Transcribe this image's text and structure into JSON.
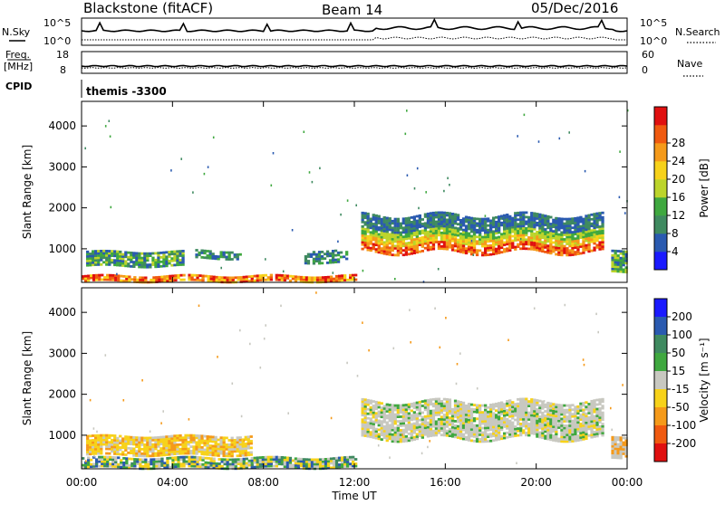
{
  "header": {
    "station": "Blackstone (fitACF)",
    "beam": "Beam 14",
    "date": "05/Dec/2016"
  },
  "summary_panels": {
    "nsky_label": "N.Sky",
    "nsearch_label": "N.Search",
    "freq_label": "Freq.",
    "freq_unit": "[MHz]",
    "nave_label": "Nave",
    "cpid_label": "CPID",
    "cpid_value": "themis -3300",
    "noise_ticks_left": [
      "10^5",
      "10^0"
    ],
    "noise_ticks_right": [
      "10^5",
      "10^0"
    ],
    "freq_ticks_left": [
      "18",
      "8"
    ],
    "freq_ticks_right": [
      "60",
      "0"
    ]
  },
  "chart_data": [
    {
      "type": "heatmap",
      "name": "power",
      "ylabel": "Slant Range [km]",
      "xlabel": "Time UT",
      "xlim": [
        "00:00",
        "24:00"
      ],
      "ylim": [
        180,
        4600
      ],
      "x_ticks": [
        "00:00",
        "04:00",
        "08:00",
        "12:00",
        "16:00",
        "20:00",
        "00:00"
      ],
      "y_ticks": [
        1000,
        2000,
        3000,
        4000
      ],
      "colorbar": {
        "label": "Power [dB]",
        "ticks": [
          4,
          8,
          12,
          16,
          20,
          24,
          28
        ],
        "colors": [
          "#1a1aff",
          "#2a5ab0",
          "#3f8a60",
          "#3fa83f",
          "#bcd42b",
          "#f7d21a",
          "#f59a1a",
          "#f05a10",
          "#e01010"
        ]
      },
      "regions": [
        {
          "t0": 0.0,
          "t1": 12.0,
          "r0": 190,
          "r1": 340,
          "level": "high"
        },
        {
          "t0": 0.2,
          "t1": 4.5,
          "r0": 560,
          "r1": 900,
          "level": "mid"
        },
        {
          "t0": 5.0,
          "t1": 7.0,
          "r0": 750,
          "r1": 950,
          "level": "low"
        },
        {
          "t0": 9.8,
          "t1": 11.6,
          "r0": 650,
          "r1": 950,
          "level": "low"
        },
        {
          "t0": 12.3,
          "t1": 22.9,
          "r0": 900,
          "r1": 1800,
          "level": "peak_band"
        },
        {
          "t0": 23.3,
          "t1": 24.0,
          "r0": 400,
          "r1": 900,
          "level": "mid"
        }
      ]
    },
    {
      "type": "heatmap",
      "name": "velocity",
      "ylabel": "Slant Range [km]",
      "xlabel": "Time UT",
      "xlim": [
        "00:00",
        "24:00"
      ],
      "ylim": [
        180,
        4600
      ],
      "x_ticks": [
        "00:00",
        "04:00",
        "08:00",
        "12:00",
        "16:00",
        "20:00",
        "00:00"
      ],
      "y_ticks": [
        1000,
        2000,
        3000,
        4000
      ],
      "colorbar": {
        "label": "Velocity [m s⁻¹]",
        "ticks": [
          200,
          100,
          50,
          15,
          -15,
          -50,
          -100,
          -200
        ],
        "colors": [
          "#1a1aff",
          "#2a5ab0",
          "#3f8a60",
          "#3fa83f",
          "#c8c8c0",
          "#f7d21a",
          "#f59a1a",
          "#f05a10",
          "#e01010"
        ]
      },
      "regions": [
        {
          "t0": 0.0,
          "t1": 12.0,
          "r0": 190,
          "r1": 420,
          "level": "mixed_green"
        },
        {
          "t0": 0.2,
          "t1": 7.5,
          "r0": 500,
          "r1": 950,
          "level": "orange"
        },
        {
          "t0": 12.3,
          "t1": 22.9,
          "r0": 900,
          "r1": 1800,
          "level": "grey_band"
        },
        {
          "t0": 23.3,
          "t1": 24.0,
          "r0": 400,
          "r1": 900,
          "level": "grey"
        }
      ]
    }
  ]
}
